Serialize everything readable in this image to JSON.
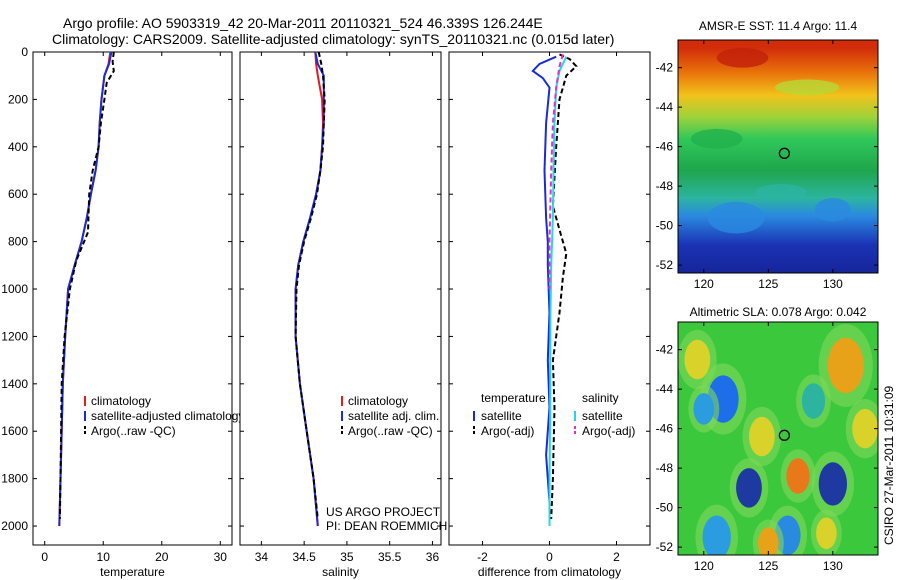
{
  "header": {
    "line1": "Argo profile: AO 5903319_42 20-Mar-2011 20110321_524 46.339S 126.244E",
    "line2": "Climatology: CARS2009. Satellite-adjusted climatology: synTS_20110321.nc (0.015d later)"
  },
  "side_label": "CSIRO 27-Mar-2011 10:31:09",
  "colors": {
    "red": "#e41a1c",
    "blue": "#1a2bd8",
    "black": "#000000",
    "cyan": "#22d8e8",
    "magenta": "#e030d0"
  },
  "chart_data": [
    {
      "type": "line",
      "name": "temperature",
      "xlabel": "temperature",
      "xlim": [
        -2,
        32
      ],
      "xticks": [
        "0",
        "10",
        "20",
        "30"
      ],
      "xtick_values": [
        0,
        10,
        20,
        30
      ],
      "ylim": [
        0,
        2080
      ],
      "yticks": [
        "0",
        "200",
        "400",
        "600",
        "800",
        "1000",
        "1200",
        "1400",
        "1600",
        "1800",
        "2000"
      ],
      "ytick_values": [
        0,
        200,
        400,
        600,
        800,
        1000,
        1200,
        1400,
        1600,
        1800,
        2000
      ],
      "y_reversed": true,
      "legend": [
        "climatology",
        "satellite-adjusted climatology",
        "Argo(..raw -QC)"
      ],
      "series": [
        {
          "name": "climatology",
          "color": "red",
          "dash": false,
          "x": [
            11.2,
            10.9,
            10.2,
            9.7,
            9.4,
            9.2,
            8.7,
            7.9,
            7.2,
            6.3,
            5.1,
            4.0,
            3.5,
            3.1,
            2.9,
            2.7,
            2.5
          ],
          "y": [
            0,
            50,
            100,
            200,
            300,
            400,
            500,
            600,
            700,
            800,
            900,
            1000,
            1200,
            1400,
            1600,
            1800,
            2000
          ]
        },
        {
          "name": "satellite-adjusted climatology",
          "color": "blue",
          "dash": false,
          "x": [
            11.4,
            11.0,
            10.2,
            9.7,
            9.4,
            9.2,
            8.7,
            7.9,
            7.2,
            6.3,
            5.1,
            4.0,
            3.5,
            3.1,
            2.9,
            2.7,
            2.5
          ],
          "y": [
            0,
            50,
            100,
            200,
            300,
            400,
            500,
            600,
            700,
            800,
            900,
            1000,
            1200,
            1400,
            1600,
            1800,
            2000
          ]
        },
        {
          "name": "Argo(..raw -QC)",
          "color": "black",
          "dash": true,
          "x": [
            11.8,
            11.6,
            11.8,
            10.6,
            10.2,
            9.6,
            9.2,
            8.2,
            7.6,
            7.4,
            5.4,
            4.3,
            3.4,
            2.9,
            2.8,
            2.7,
            2.6
          ],
          "y": [
            0,
            40,
            80,
            130,
            200,
            300,
            400,
            500,
            600,
            760,
            880,
            1000,
            1200,
            1400,
            1600,
            1800,
            1970
          ]
        }
      ]
    },
    {
      "type": "line",
      "name": "salinity",
      "xlabel": "salinity",
      "xlim": [
        33.75,
        36.1
      ],
      "xticks": [
        "34",
        "34.5",
        "35",
        "35.5",
        "36"
      ],
      "xtick_values": [
        34,
        34.5,
        35,
        35.5,
        36
      ],
      "ylim": [
        0,
        2080
      ],
      "y_reversed": true,
      "legend": [
        "climatology",
        "satellite adj. clim.",
        "Argo(..raw -QC)"
      ],
      "annotation": [
        "US ARGO PROJECT",
        "PI: DEAN ROEMMICH"
      ],
      "series": [
        {
          "name": "climatology",
          "color": "red",
          "dash": false,
          "x": [
            34.63,
            34.64,
            34.66,
            34.71,
            34.72,
            34.71,
            34.69,
            34.64,
            34.57,
            34.49,
            34.43,
            34.4,
            34.4,
            34.45,
            34.53,
            34.61,
            34.66
          ],
          "y": [
            0,
            50,
            100,
            200,
            300,
            400,
            500,
            600,
            700,
            800,
            900,
            1000,
            1200,
            1400,
            1600,
            1800,
            2000
          ]
        },
        {
          "name": "satellite adj. clim.",
          "color": "blue",
          "dash": false,
          "x": [
            34.63,
            34.66,
            34.73,
            34.73,
            34.73,
            34.71,
            34.69,
            34.64,
            34.57,
            34.49,
            34.43,
            34.4,
            34.4,
            34.45,
            34.53,
            34.61,
            34.66
          ],
          "y": [
            0,
            50,
            100,
            200,
            300,
            400,
            500,
            600,
            700,
            800,
            900,
            1000,
            1200,
            1400,
            1600,
            1800,
            2000
          ]
        },
        {
          "name": "Argo(..raw -QC)",
          "color": "black",
          "dash": true,
          "x": [
            34.67,
            34.7,
            34.72,
            34.74,
            34.73,
            34.72,
            34.69,
            34.65,
            34.58,
            34.5,
            34.44,
            34.41,
            34.4,
            34.45,
            34.53,
            34.61,
            34.66
          ],
          "y": [
            0,
            50,
            100,
            200,
            300,
            400,
            500,
            600,
            700,
            800,
            900,
            1000,
            1200,
            1400,
            1600,
            1800,
            1970
          ]
        }
      ]
    },
    {
      "type": "line",
      "name": "difference from climatology",
      "xlabel": "difference from climatology",
      "xlim": [
        -3.0,
        3.0
      ],
      "xticks": [
        "-2",
        "0",
        "2"
      ],
      "xtick_values": [
        -2,
        0,
        2
      ],
      "ylim": [
        0,
        2080
      ],
      "y_reversed": true,
      "legend_headers": [
        "temperature",
        "salinity"
      ],
      "legend_left": [
        "satellite",
        "Argo(-adj)"
      ],
      "legend_right": [
        "satellite",
        "Argo(-adj)"
      ],
      "series": [
        {
          "name": "temperature satellite",
          "color": "blue",
          "dash": false,
          "x": [
            0.2,
            -0.3,
            -0.5,
            -0.2,
            0.0,
            -0.1,
            -0.15,
            -0.1,
            -0.05,
            -0.05,
            0.0,
            -0.05,
            0.0,
            -0.1,
            0.0,
            0.0
          ],
          "y": [
            20,
            50,
            80,
            110,
            150,
            300,
            500,
            700,
            800,
            900,
            1100,
            1300,
            1500,
            1700,
            1900,
            2000
          ]
        },
        {
          "name": "temperature Argo(-adj)",
          "color": "black",
          "dash": true,
          "x": [
            0.3,
            0.6,
            0.8,
            0.5,
            0.3,
            0.2,
            0.1,
            0.3,
            0.5,
            0.4,
            0.3,
            0.1,
            0.15,
            0.1,
            0.05
          ],
          "y": [
            10,
            30,
            60,
            100,
            200,
            400,
            650,
            750,
            850,
            950,
            1100,
            1300,
            1500,
            1800,
            1970
          ]
        },
        {
          "name": "salinity satellite",
          "color": "cyan",
          "dash": false,
          "x": [
            0.5,
            0.3,
            0.2,
            0.15,
            0.12,
            0.1,
            0.05,
            0.03,
            0.02,
            0.02,
            0.0,
            0.0
          ],
          "y": [
            20,
            80,
            150,
            300,
            500,
            700,
            900,
            1100,
            1300,
            1500,
            1800,
            2000
          ]
        },
        {
          "name": "salinity Argo(-adj)",
          "color": "magenta",
          "dash": true,
          "x": [
            0.4,
            0.3,
            0.2,
            0.1,
            0.05,
            0.0,
            0.0
          ],
          "y": [
            10,
            60,
            150,
            300,
            500,
            800,
            1000
          ]
        }
      ]
    },
    {
      "type": "heatmap",
      "name": "sst map",
      "title": "AMSR-E SST: 11.4 Argo: 11.4",
      "xlim": [
        118,
        133.5
      ],
      "ylim": [
        -52.4,
        -40.6
      ],
      "xticks": [
        "120",
        "125",
        "130"
      ],
      "xtick_values": [
        120,
        125,
        130
      ],
      "yticks": [
        "-42",
        "-44",
        "-46",
        "-48",
        "-50",
        "-52"
      ],
      "ytick_values": [
        -42,
        -44,
        -46,
        -48,
        -50,
        -52
      ],
      "marker": [
        126.244,
        -46.339
      ],
      "bands": [
        {
          "lat": -41.0,
          "color": "#d22d0a"
        },
        {
          "lat": -42.2,
          "color": "#e8700a"
        },
        {
          "lat": -43.4,
          "color": "#f2c21a"
        },
        {
          "lat": -44.5,
          "color": "#9ed23a"
        },
        {
          "lat": -45.6,
          "color": "#30c85a"
        },
        {
          "lat": -47.2,
          "color": "#1ea64c"
        },
        {
          "lat": -48.6,
          "color": "#2cb4a0"
        },
        {
          "lat": -49.5,
          "color": "#2a8ae0"
        },
        {
          "lat": -51.0,
          "color": "#1a32b4"
        },
        {
          "lat": -52.4,
          "color": "#16259a"
        }
      ]
    },
    {
      "type": "heatmap",
      "name": "sla map",
      "title": "Altimetric SLA: 0.078 Argo: 0.042",
      "xlim": [
        118,
        133.5
      ],
      "ylim": [
        -52.4,
        -40.6
      ],
      "xticks": [
        "120",
        "125",
        "130"
      ],
      "xtick_values": [
        120,
        125,
        130
      ],
      "yticks": [
        "-42",
        "-44",
        "-46",
        "-48",
        "-50",
        "-52"
      ],
      "ytick_values": [
        -42,
        -44,
        -46,
        -48,
        -50,
        -52
      ],
      "marker": [
        126.244,
        -46.339
      ],
      "base_color": "#3cc83c",
      "blobs": [
        {
          "lon": 121.5,
          "lat": -44.5,
          "r": 1.2,
          "color": "#1e6eea"
        },
        {
          "lon": 120.0,
          "lat": -45.0,
          "r": 0.8,
          "color": "#2c9ce0"
        },
        {
          "lon": 123.5,
          "lat": -49.0,
          "r": 1.0,
          "color": "#1e3aa0"
        },
        {
          "lon": 130.0,
          "lat": -48.8,
          "r": 1.1,
          "color": "#1e3aa0"
        },
        {
          "lon": 126.5,
          "lat": -51.4,
          "r": 1.0,
          "color": "#2a8ae0"
        },
        {
          "lon": 121.0,
          "lat": -51.5,
          "r": 1.1,
          "color": "#2c9ce0"
        },
        {
          "lon": 119.5,
          "lat": -42.5,
          "r": 1.0,
          "color": "#d8d22a"
        },
        {
          "lon": 131.0,
          "lat": -42.8,
          "r": 1.4,
          "color": "#e8a21a"
        },
        {
          "lon": 124.5,
          "lat": -46.4,
          "r": 1.0,
          "color": "#d8d22a"
        },
        {
          "lon": 127.3,
          "lat": -48.4,
          "r": 0.9,
          "color": "#e8781a"
        },
        {
          "lon": 132.5,
          "lat": -46.0,
          "r": 1.0,
          "color": "#d8d22a"
        },
        {
          "lon": 125.0,
          "lat": -51.8,
          "r": 0.8,
          "color": "#e8a21a"
        },
        {
          "lon": 129.5,
          "lat": -51.3,
          "r": 0.8,
          "color": "#d8d22a"
        },
        {
          "lon": 128.5,
          "lat": -44.6,
          "r": 0.9,
          "color": "#2cb4a0"
        }
      ]
    }
  ]
}
